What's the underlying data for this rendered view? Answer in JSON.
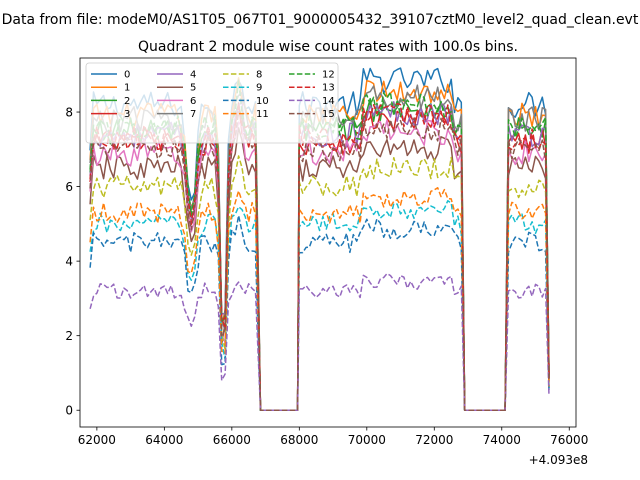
{
  "figure": {
    "suptitle": "Data from file: modeM0/AS1T05_067T01_9000005432_39107cztM0_level2_quad_clean.evt"
  },
  "chart_data": {
    "type": "line",
    "title": "Quadrant 2 module wise count rates with 100.0s bins.",
    "xlabel": "",
    "ylabel": "",
    "x_offset_label": "+4.093e8",
    "xlim": [
      61500,
      76200
    ],
    "ylim": [
      -0.45,
      9.45
    ],
    "xticks": [
      62000,
      64000,
      66000,
      68000,
      70000,
      72000,
      74000,
      76000
    ],
    "yticks": [
      0,
      2,
      4,
      6,
      8
    ],
    "grid": false,
    "legend": {
      "placement": "top-left",
      "columns": 4
    },
    "segments": [
      [
        61800,
        66700
      ],
      [
        66850,
        67950
      ],
      [
        68000,
        72850
      ],
      [
        72900,
        74150
      ],
      [
        74200,
        75400
      ]
    ],
    "series": [
      {
        "name": "0",
        "color": "#1f77b4",
        "dash": "solid",
        "level": 8.2,
        "amp": 0.25
      },
      {
        "name": "1",
        "color": "#ff7f0e",
        "dash": "solid",
        "level": 7.9,
        "amp": 0.25
      },
      {
        "name": "2",
        "color": "#2ca02c",
        "dash": "solid",
        "level": 7.5,
        "amp": 0.25
      },
      {
        "name": "3",
        "color": "#d62728",
        "dash": "solid",
        "level": 7.2,
        "amp": 0.25
      },
      {
        "name": "4",
        "color": "#9467bd",
        "dash": "solid",
        "level": 7.4,
        "amp": 0.25
      },
      {
        "name": "5",
        "color": "#8c564b",
        "dash": "solid",
        "level": 6.5,
        "amp": 0.25
      },
      {
        "name": "6",
        "color": "#e377c2",
        "dash": "solid",
        "level": 6.9,
        "amp": 0.25
      },
      {
        "name": "7",
        "color": "#7f7f7f",
        "dash": "solid",
        "level": 7.8,
        "amp": 0.25
      },
      {
        "name": "8",
        "color": "#bcbd22",
        "dash": "dashed",
        "level": 6.0,
        "amp": 0.22
      },
      {
        "name": "9",
        "color": "#17becf",
        "dash": "dashed",
        "level": 5.0,
        "amp": 0.2
      },
      {
        "name": "10",
        "color": "#1f77b4",
        "dash": "dashed",
        "level": 4.5,
        "amp": 0.2
      },
      {
        "name": "11",
        "color": "#ff7f0e",
        "dash": "dashed",
        "level": 5.3,
        "amp": 0.2
      },
      {
        "name": "12",
        "color": "#2ca02c",
        "dash": "dashed",
        "level": 7.6,
        "amp": 0.25
      },
      {
        "name": "13",
        "color": "#d62728",
        "dash": "dashed",
        "level": 7.3,
        "amp": 0.25
      },
      {
        "name": "14",
        "color": "#9467bd",
        "dash": "dashed",
        "level": 3.2,
        "amp": 0.15
      },
      {
        "name": "15",
        "color": "#8c564b",
        "dash": "dashed",
        "level": 7.0,
        "amp": 0.25
      }
    ]
  }
}
